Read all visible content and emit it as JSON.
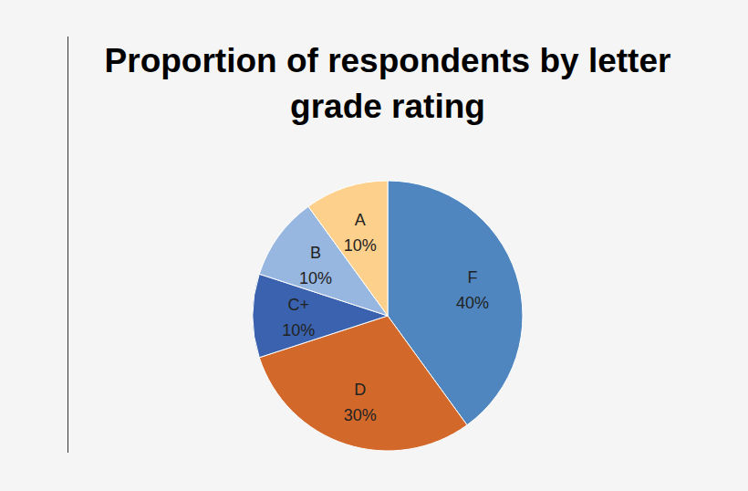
{
  "chart_data": {
    "type": "pie",
    "title": "Proportion of respondents by letter grade rating",
    "categories": [
      "F",
      "D",
      "C+",
      "B",
      "A"
    ],
    "values": [
      40,
      30,
      10,
      10,
      10
    ],
    "value_labels": [
      "40%",
      "30%",
      "10%",
      "10%",
      "10%"
    ],
    "colors": [
      "#4f86c0",
      "#d2692b",
      "#3a62ae",
      "#97b6e0",
      "#fdd18c"
    ],
    "data_labels": true
  }
}
